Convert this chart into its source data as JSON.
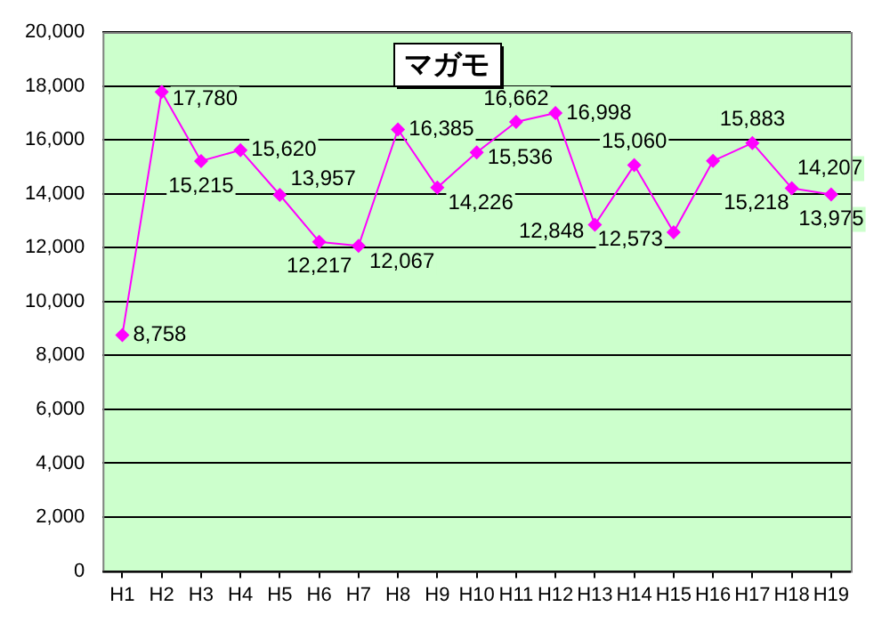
{
  "chart_data": {
    "type": "line",
    "title": "マガモ",
    "categories": [
      "H1",
      "H2",
      "H3",
      "H4",
      "H5",
      "H6",
      "H7",
      "H8",
      "H9",
      "H10",
      "H11",
      "H12",
      "H13",
      "H14",
      "H15",
      "H16",
      "H17",
      "H18",
      "H19"
    ],
    "series": [
      {
        "color": "#ff00ff",
        "values": [
          8758,
          17780,
          15215,
          15620,
          13957,
          12217,
          12067,
          16385,
          14226,
          15536,
          16662,
          16998,
          12848,
          15060,
          12573,
          15218,
          15883,
          14207,
          13975
        ],
        "value_labels": [
          "8,758",
          "17,780",
          "15,215",
          "15,620",
          "13,957",
          "12,217",
          "12,067",
          "16,385",
          "14,226",
          "15,536",
          "16,662",
          "16,998",
          "12,848",
          "15,060",
          "12,573",
          "15,218",
          "15,883",
          "14,207",
          "13,975"
        ]
      }
    ],
    "ylim": [
      0,
      20000
    ],
    "yticks": [
      {
        "value": 0,
        "label": "0"
      },
      {
        "value": 2000,
        "label": "2,000"
      },
      {
        "value": 4000,
        "label": "4,000"
      },
      {
        "value": 6000,
        "label": "6,000"
      },
      {
        "value": 8000,
        "label": "8,000"
      },
      {
        "value": 10000,
        "label": "10,000"
      },
      {
        "value": 12000,
        "label": "12,000"
      },
      {
        "value": 14000,
        "label": "14,000"
      },
      {
        "value": 16000,
        "label": "16,000"
      },
      {
        "value": 18000,
        "label": "18,000"
      },
      {
        "value": 20000,
        "label": "20,000"
      }
    ],
    "grid": "y",
    "legend": false,
    "marker": "diamond",
    "line_style": "solid"
  }
}
